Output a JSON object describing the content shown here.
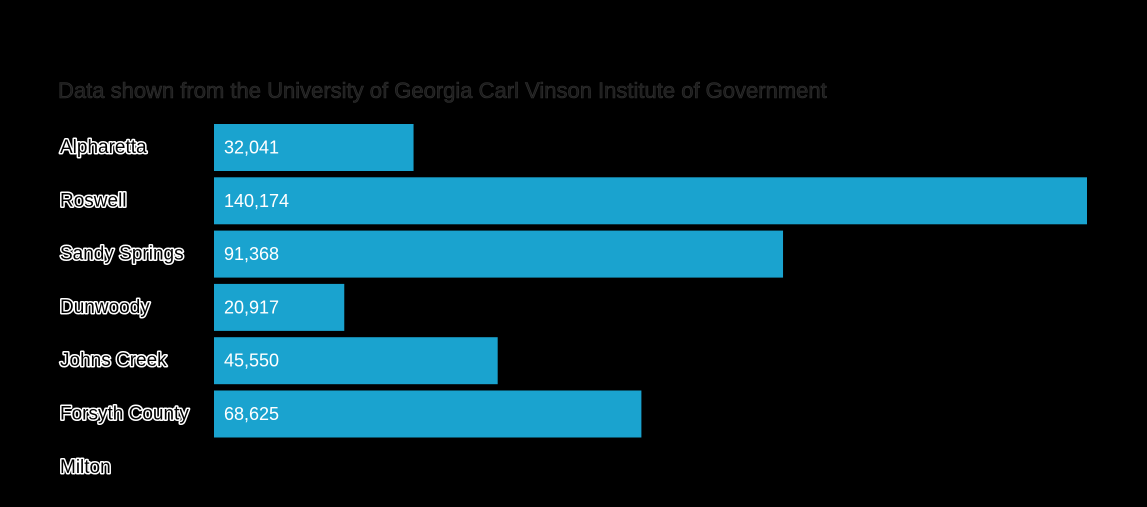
{
  "subtitle": "Data shown from the University of Georgia Carl Vinson Institute of Government",
  "colors": {
    "bar": "#1aa3cf",
    "background": "#000000"
  },
  "chart_data": {
    "type": "bar",
    "orientation": "horizontal",
    "subtitle": "Data shown from the University of Georgia Carl Vinson Institute of Government",
    "categories": [
      "Alpharetta",
      "Roswell",
      "Sandy Springs",
      "Dunwoody",
      "Johns Creek",
      "Forsyth County",
      "Milton"
    ],
    "values": [
      32041,
      140174,
      91368,
      20917,
      45550,
      68625,
      null
    ],
    "value_labels": [
      "32,041",
      "140,174",
      "91,368",
      "20,917",
      "45,550",
      "68,625",
      ""
    ],
    "xlim": [
      0,
      140174
    ],
    "grid": false,
    "legend": "none"
  }
}
